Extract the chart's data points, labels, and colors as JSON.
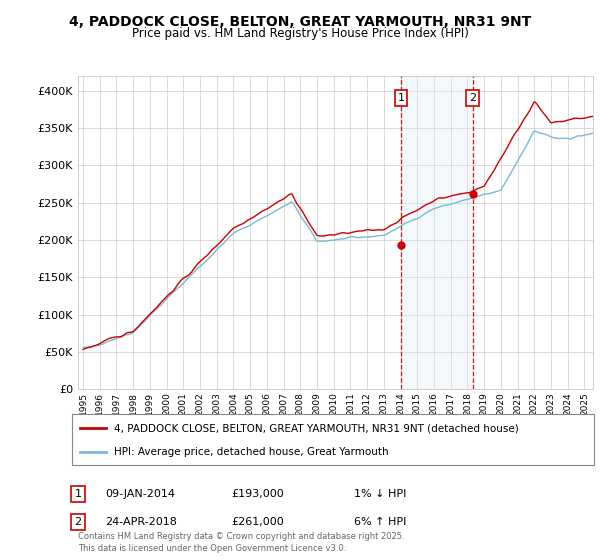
{
  "title": "4, PADDOCK CLOSE, BELTON, GREAT YARMOUTH, NR31 9NT",
  "subtitle": "Price paid vs. HM Land Registry's House Price Index (HPI)",
  "legend_line1": "4, PADDOCK CLOSE, BELTON, GREAT YARMOUTH, NR31 9NT (detached house)",
  "legend_line2": "HPI: Average price, detached house, Great Yarmouth",
  "annotation1_label": "1",
  "annotation1_date": "09-JAN-2014",
  "annotation1_price": "£193,000",
  "annotation1_hpi": "1% ↓ HPI",
  "annotation2_label": "2",
  "annotation2_date": "24-APR-2018",
  "annotation2_price": "£261,000",
  "annotation2_hpi": "6% ↑ HPI",
  "footer": "Contains HM Land Registry data © Crown copyright and database right 2025.\nThis data is licensed under the Open Government Licence v3.0.",
  "hpi_color": "#7ab8d9",
  "price_color": "#cc0000",
  "background_color": "#ffffff",
  "shade_color": "#daeaf5",
  "annotation_color": "#cc0000",
  "ylim": [
    0,
    420000
  ],
  "yticks": [
    0,
    50000,
    100000,
    150000,
    200000,
    250000,
    300000,
    350000,
    400000
  ],
  "sale1_year": 2014.03,
  "sale1_value": 193000,
  "sale2_year": 2018.32,
  "sale2_value": 261000,
  "xmin": 1994.7,
  "xmax": 2025.5
}
